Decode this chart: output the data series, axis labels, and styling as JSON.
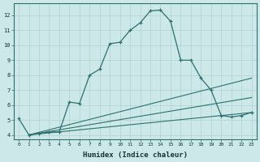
{
  "title": "",
  "xlabel": "Humidex (Indice chaleur)",
  "ylabel": "",
  "bg_color": "#cce8e8",
  "grid_color": "#b0d0d0",
  "line_color": "#2d7070",
  "xlim": [
    -0.5,
    23.5
  ],
  "ylim": [
    3.7,
    12.8
  ],
  "xticks": [
    0,
    1,
    2,
    3,
    4,
    5,
    6,
    7,
    8,
    9,
    10,
    11,
    12,
    13,
    14,
    15,
    16,
    17,
    18,
    19,
    20,
    21,
    22,
    23
  ],
  "yticks": [
    4,
    5,
    6,
    7,
    8,
    9,
    10,
    11,
    12
  ],
  "lines": [
    {
      "x": [
        0,
        1,
        2,
        3,
        4,
        5,
        6,
        7,
        8,
        9,
        10,
        11,
        12,
        13,
        14,
        15,
        16,
        17,
        18,
        19,
        20,
        21,
        22,
        23
      ],
      "y": [
        5.1,
        4.0,
        4.1,
        4.2,
        4.2,
        6.2,
        6.1,
        8.0,
        8.4,
        10.1,
        10.2,
        11.0,
        11.5,
        12.3,
        12.35,
        11.6,
        9.0,
        9.0,
        7.8,
        7.0,
        5.3,
        5.2,
        5.3,
        5.5
      ],
      "marker": "+"
    },
    {
      "x": [
        1,
        23
      ],
      "y": [
        4.0,
        7.8
      ],
      "marker": null
    },
    {
      "x": [
        1,
        23
      ],
      "y": [
        4.0,
        6.5
      ],
      "marker": null
    },
    {
      "x": [
        1,
        23
      ],
      "y": [
        4.0,
        5.5
      ],
      "marker": null
    }
  ]
}
